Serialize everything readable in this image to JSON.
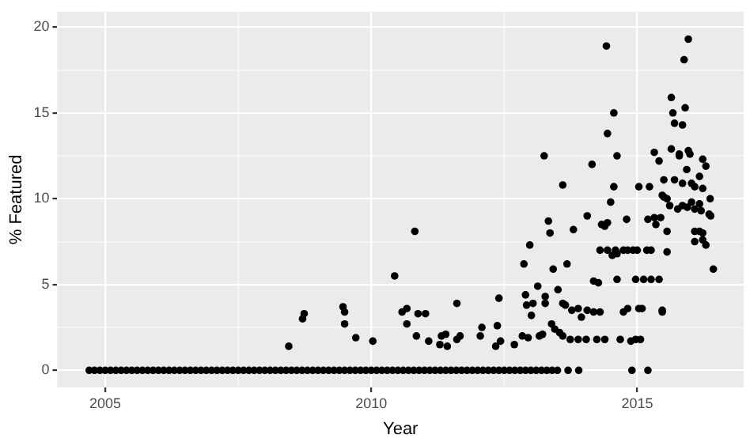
{
  "chart_data": {
    "type": "scatter",
    "xlabel": "Year",
    "ylabel": "% Featured",
    "xlim": [
      2004.1,
      2017.0
    ],
    "ylim": [
      -1.0,
      20.9
    ],
    "xticks": [
      2005,
      {
        "value": 2007.5,
        "label": null
      },
      2010,
      {
        "value": 2012.5,
        "label": null
      },
      2015
    ],
    "yticks": [
      0,
      {
        "value": 2.5,
        "label": null
      },
      5,
      {
        "value": 7.5,
        "label": null
      },
      10,
      {
        "value": 12.5,
        "label": null
      },
      15,
      {
        "value": 17.5,
        "label": null
      },
      20
    ],
    "grid": true,
    "legend": false,
    "marker": "circle",
    "series": [
      {
        "color": "#000000",
        "x": [
          2004.7,
          2004.8,
          2004.9,
          2005,
          2005.1,
          2005.2,
          2005.3,
          2005.4,
          2005.5,
          2005.6,
          2005.7,
          2005.8,
          2005.9,
          2006,
          2006.1,
          2006.2,
          2006.3,
          2006.4,
          2006.5,
          2006.6,
          2006.7,
          2006.8,
          2006.9,
          2007,
          2007.1,
          2007.2,
          2007.3,
          2007.4,
          2007.5,
          2007.6,
          2007.7,
          2007.8,
          2007.9,
          2008,
          2008.1,
          2008.2,
          2008.3,
          2008.4,
          2008.5,
          2008.6,
          2008.7,
          2008.8,
          2008.9,
          2009,
          2009.1,
          2009.2,
          2009.3,
          2009.4,
          2009.5,
          2009.6,
          2009.7,
          2009.8,
          2009.9,
          2010,
          2010.1,
          2010.2,
          2010.3,
          2010.4,
          2010.5,
          2010.6,
          2010.7,
          2010.8,
          2010.9,
          2011,
          2011.1,
          2011.2,
          2011.3,
          2011.4,
          2011.5,
          2011.6,
          2011.7,
          2011.8,
          2011.9,
          2012,
          2012.1,
          2012.2,
          2012.3,
          2012.4,
          2012.5,
          2012.6,
          2012.7,
          2012.8,
          2012.9,
          2013,
          2013.1,
          2013.2,
          2013.3,
          2013.4,
          2013.5,
          2013.7,
          2013.9,
          2014.9,
          2015.2,
          2008.45,
          2008.71,
          2008.74,
          2009.47,
          2009.5,
          2009.5,
          2009.71,
          2010.03,
          2010.44,
          2010.82,
          2010.58,
          2010.67,
          2010.67,
          2010.88,
          2011.02,
          2010.85,
          2011.08,
          2011.29,
          2011.43,
          2011.32,
          2011.4,
          2011.61,
          2011.61,
          2011.67,
          2012.08,
          2012.05,
          2012.4,
          2012.37,
          2012.34,
          2012.43,
          2012.69,
          2012.87,
          2012.98,
          2012.9,
          2013.04,
          2012.92,
          2013.01,
          2013.13,
          2012.84,
          2012.95,
          2013.16,
          2013.22,
          2013.27,
          2013.27,
          2013.33,
          2013.36,
          2013.42,
          2013.39,
          2013.45,
          2013.54,
          2013.6,
          2013.51,
          2013.6,
          2013.65,
          2013.68,
          2013.8,
          2013.74,
          2013.89,
          2014.04,
          2014.24,
          2014.39,
          2013.77,
          2013.89,
          2013.95,
          2014.06,
          2014.18,
          2014.3,
          2014.06,
          2014.18,
          2014.27,
          2014.33,
          2014.44,
          2014.39,
          2014.5,
          2014.3,
          2014.44,
          2014.59,
          2014.74,
          2014.82,
          2014.92,
          2015.0,
          2015.18,
          2015.26,
          2014.53,
          2014.62,
          2014.68,
          2014.62,
          2014.74,
          2014.82,
          2014.88,
          2014.97,
          2015.06,
          2014.8,
          2014.97,
          2015.12,
          2015.26,
          2015.41,
          2015.03,
          2015.09,
          2015.2,
          2015.32,
          2015.35,
          2015.47,
          2015.47,
          2015.44,
          2015.56,
          2015.5,
          2015.61,
          2015.56,
          2015.76,
          2015.85,
          2015.94,
          2016.02,
          2016.08,
          2016.17,
          2016.2,
          2016.37,
          2016.08,
          2016.17,
          2016.23,
          2016.08,
          2016.23,
          2016.29,
          2016.35,
          2016.38,
          2016.43,
          2014.42,
          2015.96,
          2015.88,
          2014.56,
          2014.44,
          2013.25,
          2014.15,
          2014.62,
          2013.6,
          2014.56,
          2015.03,
          2015.23,
          2015.64,
          2015.9,
          2015.67,
          2015.7,
          2015.85,
          2015.32,
          2015.64,
          2015.79,
          2015.96,
          2015.99,
          2015.41,
          2015.79,
          2016.23,
          2016.29,
          2015.93,
          2016.17,
          2015.5,
          2015.7,
          2015.85,
          2016.02,
          2016.08,
          2016.23,
          2015.47,
          2015.56
        ],
        "values": [
          0,
          0,
          0,
          0,
          0,
          0,
          0,
          0,
          0,
          0,
          0,
          0,
          0,
          0,
          0,
          0,
          0,
          0,
          0,
          0,
          0,
          0,
          0,
          0,
          0,
          0,
          0,
          0,
          0,
          0,
          0,
          0,
          0,
          0,
          0,
          0,
          0,
          0,
          0,
          0,
          0,
          0,
          0,
          0,
          0,
          0,
          0,
          0,
          0,
          0,
          0,
          0,
          0,
          0,
          0,
          0,
          0,
          0,
          0,
          0,
          0,
          0,
          0,
          0,
          0,
          0,
          0,
          0,
          0,
          0,
          0,
          0,
          0,
          0,
          0,
          0,
          0,
          0,
          0,
          0,
          0,
          0,
          0,
          0,
          0,
          0,
          0,
          0,
          0,
          0,
          0,
          0,
          0,
          1.4,
          3.0,
          3.3,
          3.7,
          3.4,
          2.7,
          1.9,
          1.7,
          5.5,
          8.1,
          3.4,
          3.6,
          2.7,
          3.3,
          3.3,
          2.0,
          1.7,
          1.5,
          1.4,
          2.0,
          2.1,
          3.9,
          1.8,
          2.0,
          2.5,
          2.0,
          4.2,
          2.6,
          1.4,
          1.7,
          1.5,
          6.2,
          7.3,
          4.4,
          3.9,
          3.8,
          3.2,
          4.9,
          2.0,
          1.9,
          2.0,
          2.1,
          4.3,
          3.9,
          8.7,
          8.0,
          5.9,
          2.7,
          2.4,
          2.2,
          2.0,
          4.7,
          3.9,
          3.8,
          6.2,
          8.2,
          1.8,
          1.8,
          1.8,
          1.8,
          1.8,
          3.5,
          3.6,
          3.1,
          3.5,
          3.4,
          3.4,
          9.0,
          5.2,
          5.1,
          8.5,
          8.6,
          8.4,
          9.8,
          7.0,
          7.0,
          7.0,
          7.0,
          7.0,
          7.0,
          7.0,
          7.0,
          7.0,
          6.7,
          6.8,
          1.8,
          5.3,
          3.4,
          3.6,
          1.7,
          1.8,
          1.8,
          8.8,
          5.3,
          5.3,
          5.3,
          5.3,
          3.6,
          3.6,
          8.8,
          8.9,
          8.5,
          3.5,
          3.4,
          8.9,
          8.1,
          10.1,
          9.6,
          6.9,
          9.4,
          9.6,
          9.5,
          9.8,
          9.4,
          9.7,
          9.3,
          10.0,
          8.1,
          8.1,
          8.0,
          7.5,
          7.6,
          7.3,
          9.1,
          9.0,
          5.9,
          18.9,
          19.3,
          18.1,
          15.0,
          13.8,
          12.5,
          12.0,
          12.5,
          10.8,
          10.7,
          10.7,
          10.7,
          15.9,
          15.3,
          15.0,
          14.4,
          14.3,
          12.7,
          12.9,
          12.6,
          12.8,
          12.6,
          12.2,
          12.5,
          12.3,
          11.9,
          11.7,
          11.3,
          11.1,
          11.1,
          10.9,
          10.9,
          10.7,
          10.6,
          10.2,
          10.0
        ]
      }
    ]
  }
}
